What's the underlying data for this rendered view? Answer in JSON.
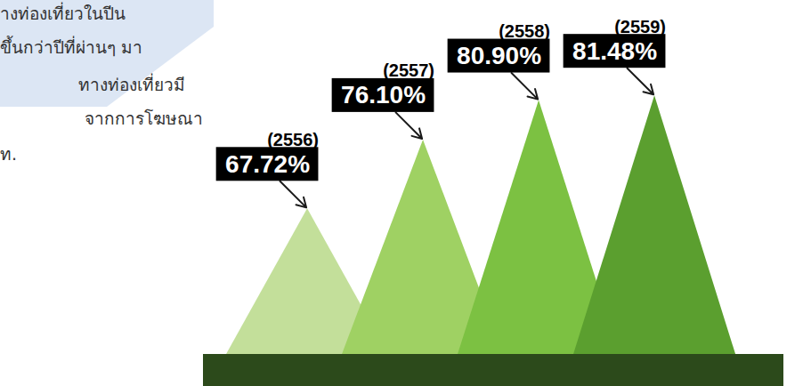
{
  "chart_data": {
    "type": "bar",
    "categories": [
      "(2556)",
      "(2557)",
      "(2558)",
      "(2559)"
    ],
    "values": [
      67.72,
      76.1,
      80.9,
      81.48
    ],
    "value_labels": [
      "67.72%",
      "76.10%",
      "80.90%",
      "81.48%"
    ],
    "colors": [
      "#c3df9a",
      "#9fd163",
      "#7cc142",
      "#5b9f2f"
    ],
    "ylim": [
      50,
      92
    ],
    "tick_labels": false,
    "data_labels": true,
    "annotations": [
      "างท่องเที่ยวในปีน",
      "ขึ้นกว่าปีที่ผ่านๆ มา",
      "ทางท่องเที่ยวมี",
      "จากการโฆษณา",
      "ท."
    ]
  }
}
